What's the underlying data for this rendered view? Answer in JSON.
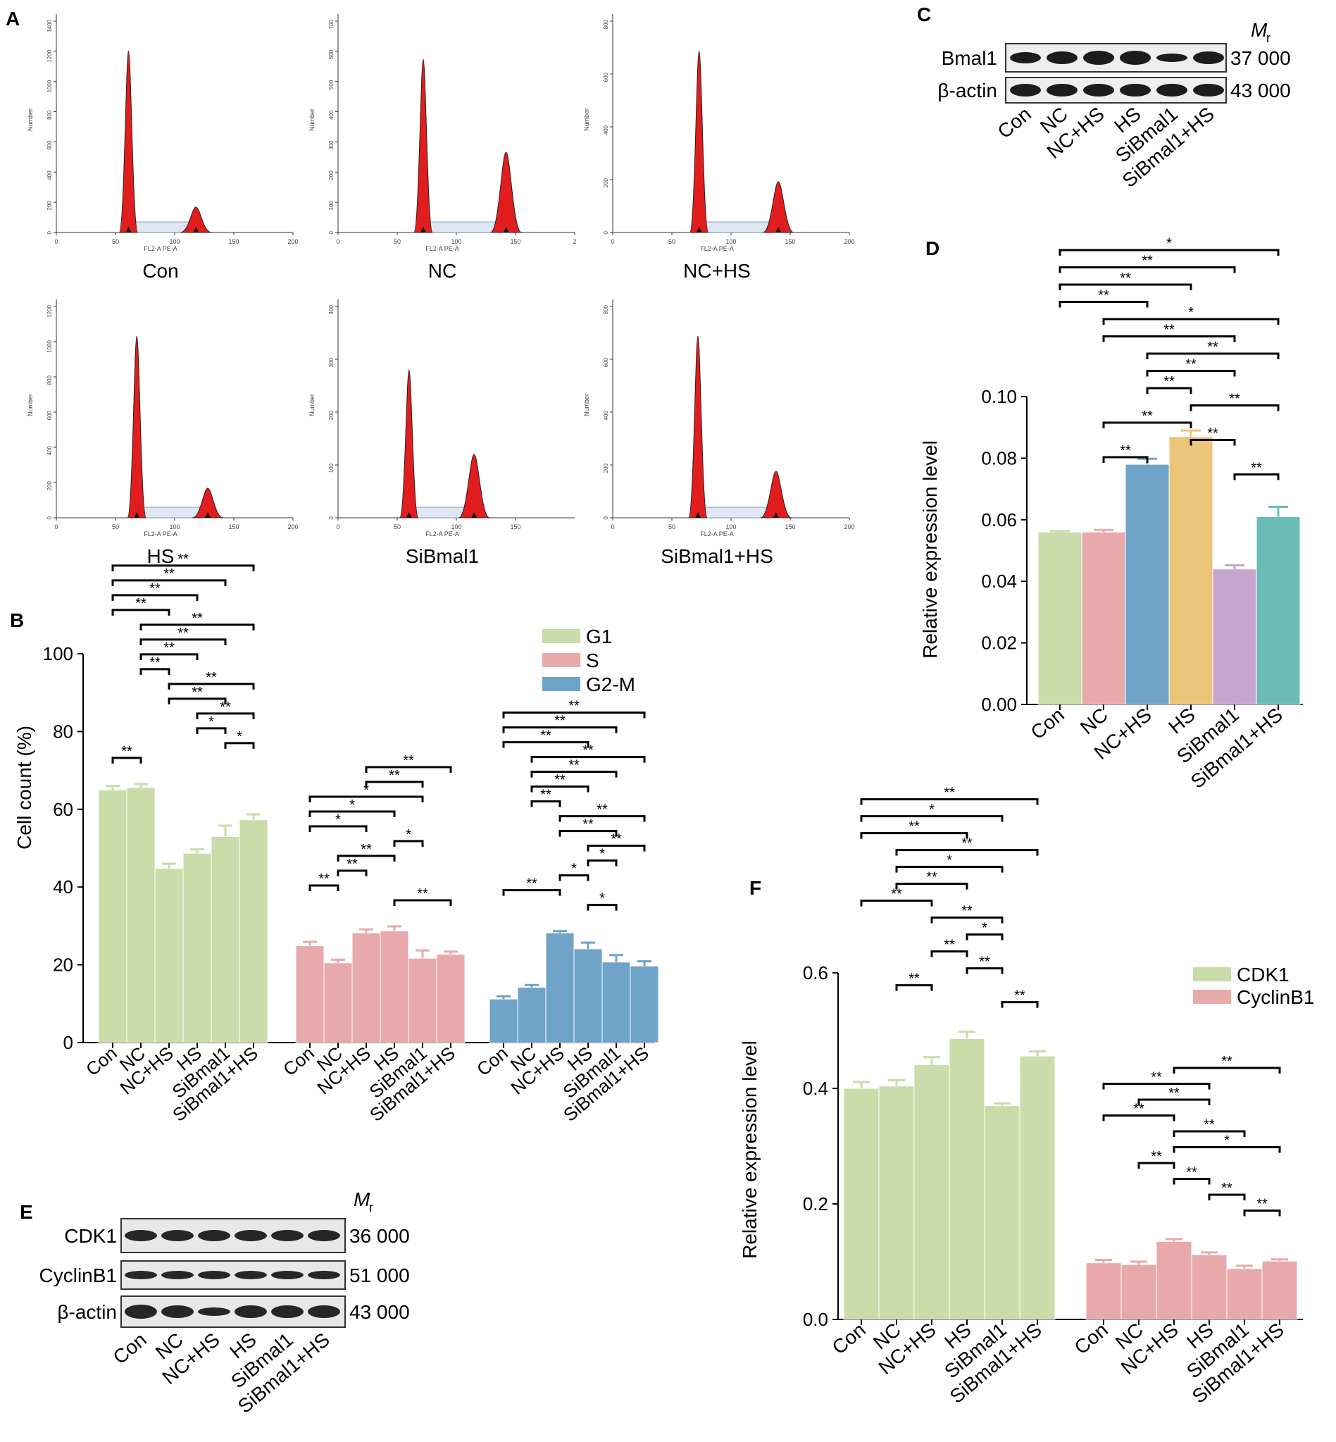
{
  "panels": {
    "A": {
      "letter": "A",
      "histograms": [
        {
          "label": "Con",
          "x_label": "FL2-A PE-A",
          "y_label": "Number",
          "x_ticks": [
            "0",
            "50",
            "100",
            "150",
            "200"
          ],
          "y_ticks": [
            "0",
            "200",
            "400",
            "600",
            "800",
            "1000",
            "1200",
            "1400"
          ],
          "g1_peak": 61,
          "g2_peak": 118,
          "g1_height": 0.86,
          "g2_height": 0.12
        },
        {
          "label": "NC",
          "x_label": "FL2-A PE-A",
          "y_label": "Number",
          "x_ticks": [
            "0",
            "50",
            "100",
            "150",
            "2"
          ],
          "y_ticks": [
            "0",
            "100",
            "200",
            "300",
            "400",
            "500",
            "600",
            "700"
          ],
          "g1_peak": 72,
          "g2_peak": 142,
          "g1_height": 0.82,
          "g2_height": 0.38
        },
        {
          "label": "NC+HS",
          "x_label": "FL2-A PE-A",
          "y_label": "Number",
          "x_ticks": [
            "0",
            "50",
            "100",
            "150",
            "200"
          ],
          "y_ticks": [
            "0",
            "200",
            "400",
            "600",
            "800"
          ],
          "g1_peak": 73,
          "g2_peak": 140,
          "g1_height": 0.86,
          "g2_height": 0.24
        },
        {
          "label": "HS",
          "x_label": "FL2-A PE-A",
          "y_label": "Number",
          "x_ticks": [
            "0",
            "50",
            "100",
            "150",
            "200"
          ],
          "y_ticks": [
            "0",
            "200",
            "400",
            "600",
            "800",
            "1000",
            "1200"
          ],
          "g1_peak": 68,
          "g2_peak": 128,
          "g1_height": 0.86,
          "g2_height": 0.14
        },
        {
          "label": "SiBmal1",
          "x_label": "FL2-A PE-A",
          "y_label": "Number",
          "x_ticks": [
            "0",
            "50",
            "100",
            "150"
          ],
          "y_ticks": [
            "0",
            "100",
            "200",
            "300",
            "400"
          ],
          "g1_peak": 60,
          "g2_peak": 115,
          "g1_height": 0.7,
          "g2_height": 0.3
        },
        {
          "label": "SiBmal1+HS",
          "x_label": "FL2-A PE-A",
          "y_label": "Number",
          "x_ticks": [
            "0",
            "50",
            "100",
            "150",
            "200"
          ],
          "y_ticks": [
            "0",
            "200",
            "400",
            "600",
            "800"
          ],
          "g1_peak": 72,
          "g2_peak": 138,
          "g1_height": 0.86,
          "g2_height": 0.22
        }
      ]
    },
    "B": {
      "letter": "B"
    },
    "C": {
      "letter": "C",
      "mr_label": "M",
      "mr_sub": "r",
      "rows": [
        {
          "name": "Bmal1",
          "mr": "37 000"
        },
        {
          "name": "β-actin",
          "mr": "43 000"
        }
      ],
      "lanes": [
        "Con",
        "NC",
        "NC+HS",
        "HS",
        "SiBmal1",
        "SiBmal1+HS"
      ]
    },
    "D": {
      "letter": "D"
    },
    "E": {
      "letter": "E",
      "mr_label": "M",
      "mr_sub": "r",
      "rows": [
        {
          "name": "CDK1",
          "mr": "36 000"
        },
        {
          "name": "CyclinB1",
          "mr": "51 000"
        },
        {
          "name": "β-actin",
          "mr": "43 000"
        }
      ],
      "lanes": [
        "Con",
        "NC",
        "NC+HS",
        "HS",
        "SiBmal1",
        "SiBmal1+HS"
      ]
    },
    "F": {
      "letter": "F"
    }
  },
  "chart_data": [
    {
      "id": "B",
      "type": "bar",
      "categories": [
        "Con",
        "NC",
        "NC+HS",
        "HS",
        "SiBmal1",
        "SiBmal1+HS"
      ],
      "series": [
        {
          "name": "G1",
          "color": "#c9dcaa",
          "values": [
            65.0,
            65.6,
            44.8,
            48.7,
            53.0,
            57.3
          ],
          "errors": [
            1.0,
            0.9,
            1.2,
            1.0,
            2.8,
            1.4
          ],
          "brackets": [
            [
              0,
              5,
              "**"
            ],
            [
              0,
              4,
              "**"
            ],
            [
              0,
              3,
              "**"
            ],
            [
              0,
              2,
              "**"
            ],
            [
              1,
              5,
              "**"
            ],
            [
              1,
              4,
              "**"
            ],
            [
              1,
              3,
              "**"
            ],
            [
              1,
              2,
              "**"
            ],
            [
              2,
              5,
              "**"
            ],
            [
              2,
              4,
              "**"
            ],
            [
              3,
              5,
              "**"
            ],
            [
              3,
              4,
              "*"
            ],
            [
              4,
              5,
              "*"
            ],
            [
              0,
              1,
              "**"
            ]
          ]
        },
        {
          "name": "S",
          "color": "#e8a9aa",
          "values": [
            24.9,
            20.5,
            28.2,
            28.7,
            21.7,
            22.7
          ],
          "errors": [
            1.0,
            0.8,
            0.9,
            1.2,
            2.0,
            0.7
          ],
          "brackets": [
            [
              2,
              5,
              "**"
            ],
            [
              2,
              4,
              "**"
            ],
            [
              0,
              4,
              "*"
            ],
            [
              0,
              3,
              "*"
            ],
            [
              0,
              2,
              "*"
            ],
            [
              3,
              4,
              "*"
            ],
            [
              1,
              3,
              "**"
            ],
            [
              1,
              2,
              "**"
            ],
            [
              0,
              1,
              "**"
            ],
            [
              3,
              5,
              "**"
            ]
          ]
        },
        {
          "name": "G2-M",
          "color": "#6fa3c8",
          "values": [
            11.2,
            14.2,
            28.2,
            24.1,
            20.7,
            19.7
          ],
          "errors": [
            0.7,
            0.6,
            0.5,
            1.6,
            1.8,
            1.2
          ],
          "brackets": [
            [
              0,
              5,
              "**"
            ],
            [
              0,
              4,
              "**"
            ],
            [
              0,
              3,
              "**"
            ],
            [
              1,
              5,
              "**"
            ],
            [
              1,
              4,
              "**"
            ],
            [
              1,
              3,
              "**"
            ],
            [
              1,
              2,
              "**"
            ],
            [
              2,
              5,
              "**"
            ],
            [
              2,
              4,
              "**"
            ],
            [
              3,
              5,
              "**"
            ],
            [
              3,
              4,
              "*"
            ],
            [
              2,
              3,
              "*"
            ],
            [
              0,
              2,
              "**"
            ],
            [
              3,
              4,
              "*"
            ]
          ]
        }
      ],
      "ylabel": "Cell count (%)",
      "ylim": [
        0,
        100
      ],
      "yticks": [
        "0",
        "20",
        "40",
        "60",
        "80",
        "100"
      ],
      "legend": [
        "G1",
        "S",
        "G2-M"
      ],
      "legend_position": "top-right"
    },
    {
      "id": "D",
      "type": "bar",
      "categories": [
        "Con",
        "NC",
        "NC+HS",
        "HS",
        "SiBmal1",
        "SiBmal1+HS"
      ],
      "values": [
        0.056,
        0.056,
        0.078,
        0.087,
        0.044,
        0.061
      ],
      "errors": [
        0.0003,
        0.0007,
        0.0018,
        0.002,
        0.0012,
        0.0032
      ],
      "colors": [
        "#c9dcaa",
        "#e8a9aa",
        "#6fa3c8",
        "#ebc57a",
        "#c6a6cf",
        "#6bbcb6"
      ],
      "brackets": [
        [
          0,
          5,
          "*"
        ],
        [
          0,
          4,
          "**"
        ],
        [
          0,
          3,
          "**"
        ],
        [
          0,
          2,
          "**"
        ],
        [
          1,
          5,
          "*"
        ],
        [
          1,
          4,
          "**"
        ],
        [
          2,
          5,
          "**"
        ],
        [
          2,
          4,
          "**"
        ],
        [
          2,
          3,
          "**"
        ],
        [
          3,
          5,
          "**"
        ],
        [
          1,
          3,
          "**"
        ],
        [
          3,
          4,
          "**"
        ],
        [
          1,
          2,
          "**"
        ],
        [
          4,
          5,
          "**"
        ]
      ],
      "ylabel": "Relative expression level",
      "ylim": [
        0,
        0.1
      ],
      "yticks": [
        "0.00",
        "0.02",
        "0.04",
        "0.06",
        "0.08",
        "0.10"
      ]
    },
    {
      "id": "F",
      "type": "bar",
      "categories": [
        "Con",
        "NC",
        "NC+HS",
        "HS",
        "SiBmal1",
        "SiBmal1+HS"
      ],
      "series": [
        {
          "name": "CDK1",
          "color": "#c9dcaa",
          "values": [
            0.4,
            0.404,
            0.441,
            0.486,
            0.37,
            0.456
          ],
          "errors": [
            0.011,
            0.01,
            0.013,
            0.012,
            0.004,
            0.008
          ],
          "brackets": [
            [
              0,
              5,
              "**"
            ],
            [
              0,
              4,
              "*"
            ],
            [
              0,
              3,
              "**"
            ],
            [
              1,
              5,
              "**"
            ],
            [
              1,
              4,
              "*"
            ],
            [
              1,
              3,
              "**"
            ],
            [
              0,
              2,
              "**"
            ],
            [
              2,
              4,
              "**"
            ],
            [
              3,
              4,
              "*"
            ],
            [
              2,
              3,
              "**"
            ],
            [
              3,
              4,
              "**"
            ],
            [
              1,
              2,
              "**"
            ],
            [
              4,
              5,
              "**"
            ]
          ]
        },
        {
          "name": "CyclinB1",
          "color": "#e8a9aa",
          "values": [
            0.098,
            0.095,
            0.135,
            0.112,
            0.088,
            0.101
          ],
          "errors": [
            0.005,
            0.005,
            0.004,
            0.004,
            0.005,
            0.003
          ],
          "brackets": [
            [
              2,
              5,
              "**"
            ],
            [
              0,
              3,
              "**"
            ],
            [
              1,
              3,
              "**"
            ],
            [
              0,
              2,
              "**"
            ],
            [
              2,
              4,
              "**"
            ],
            [
              2,
              5,
              "*"
            ],
            [
              1,
              2,
              "**"
            ],
            [
              2,
              3,
              "**"
            ],
            [
              3,
              4,
              "**"
            ],
            [
              4,
              5,
              "**"
            ]
          ]
        }
      ],
      "ylabel": "Relative expression level",
      "ylim": [
        0,
        0.6
      ],
      "yticks": [
        "0.0",
        "0.2",
        "0.4",
        "0.6"
      ],
      "legend": [
        "CDK1",
        "CyclinB1"
      ],
      "legend_position": "top-right"
    }
  ]
}
